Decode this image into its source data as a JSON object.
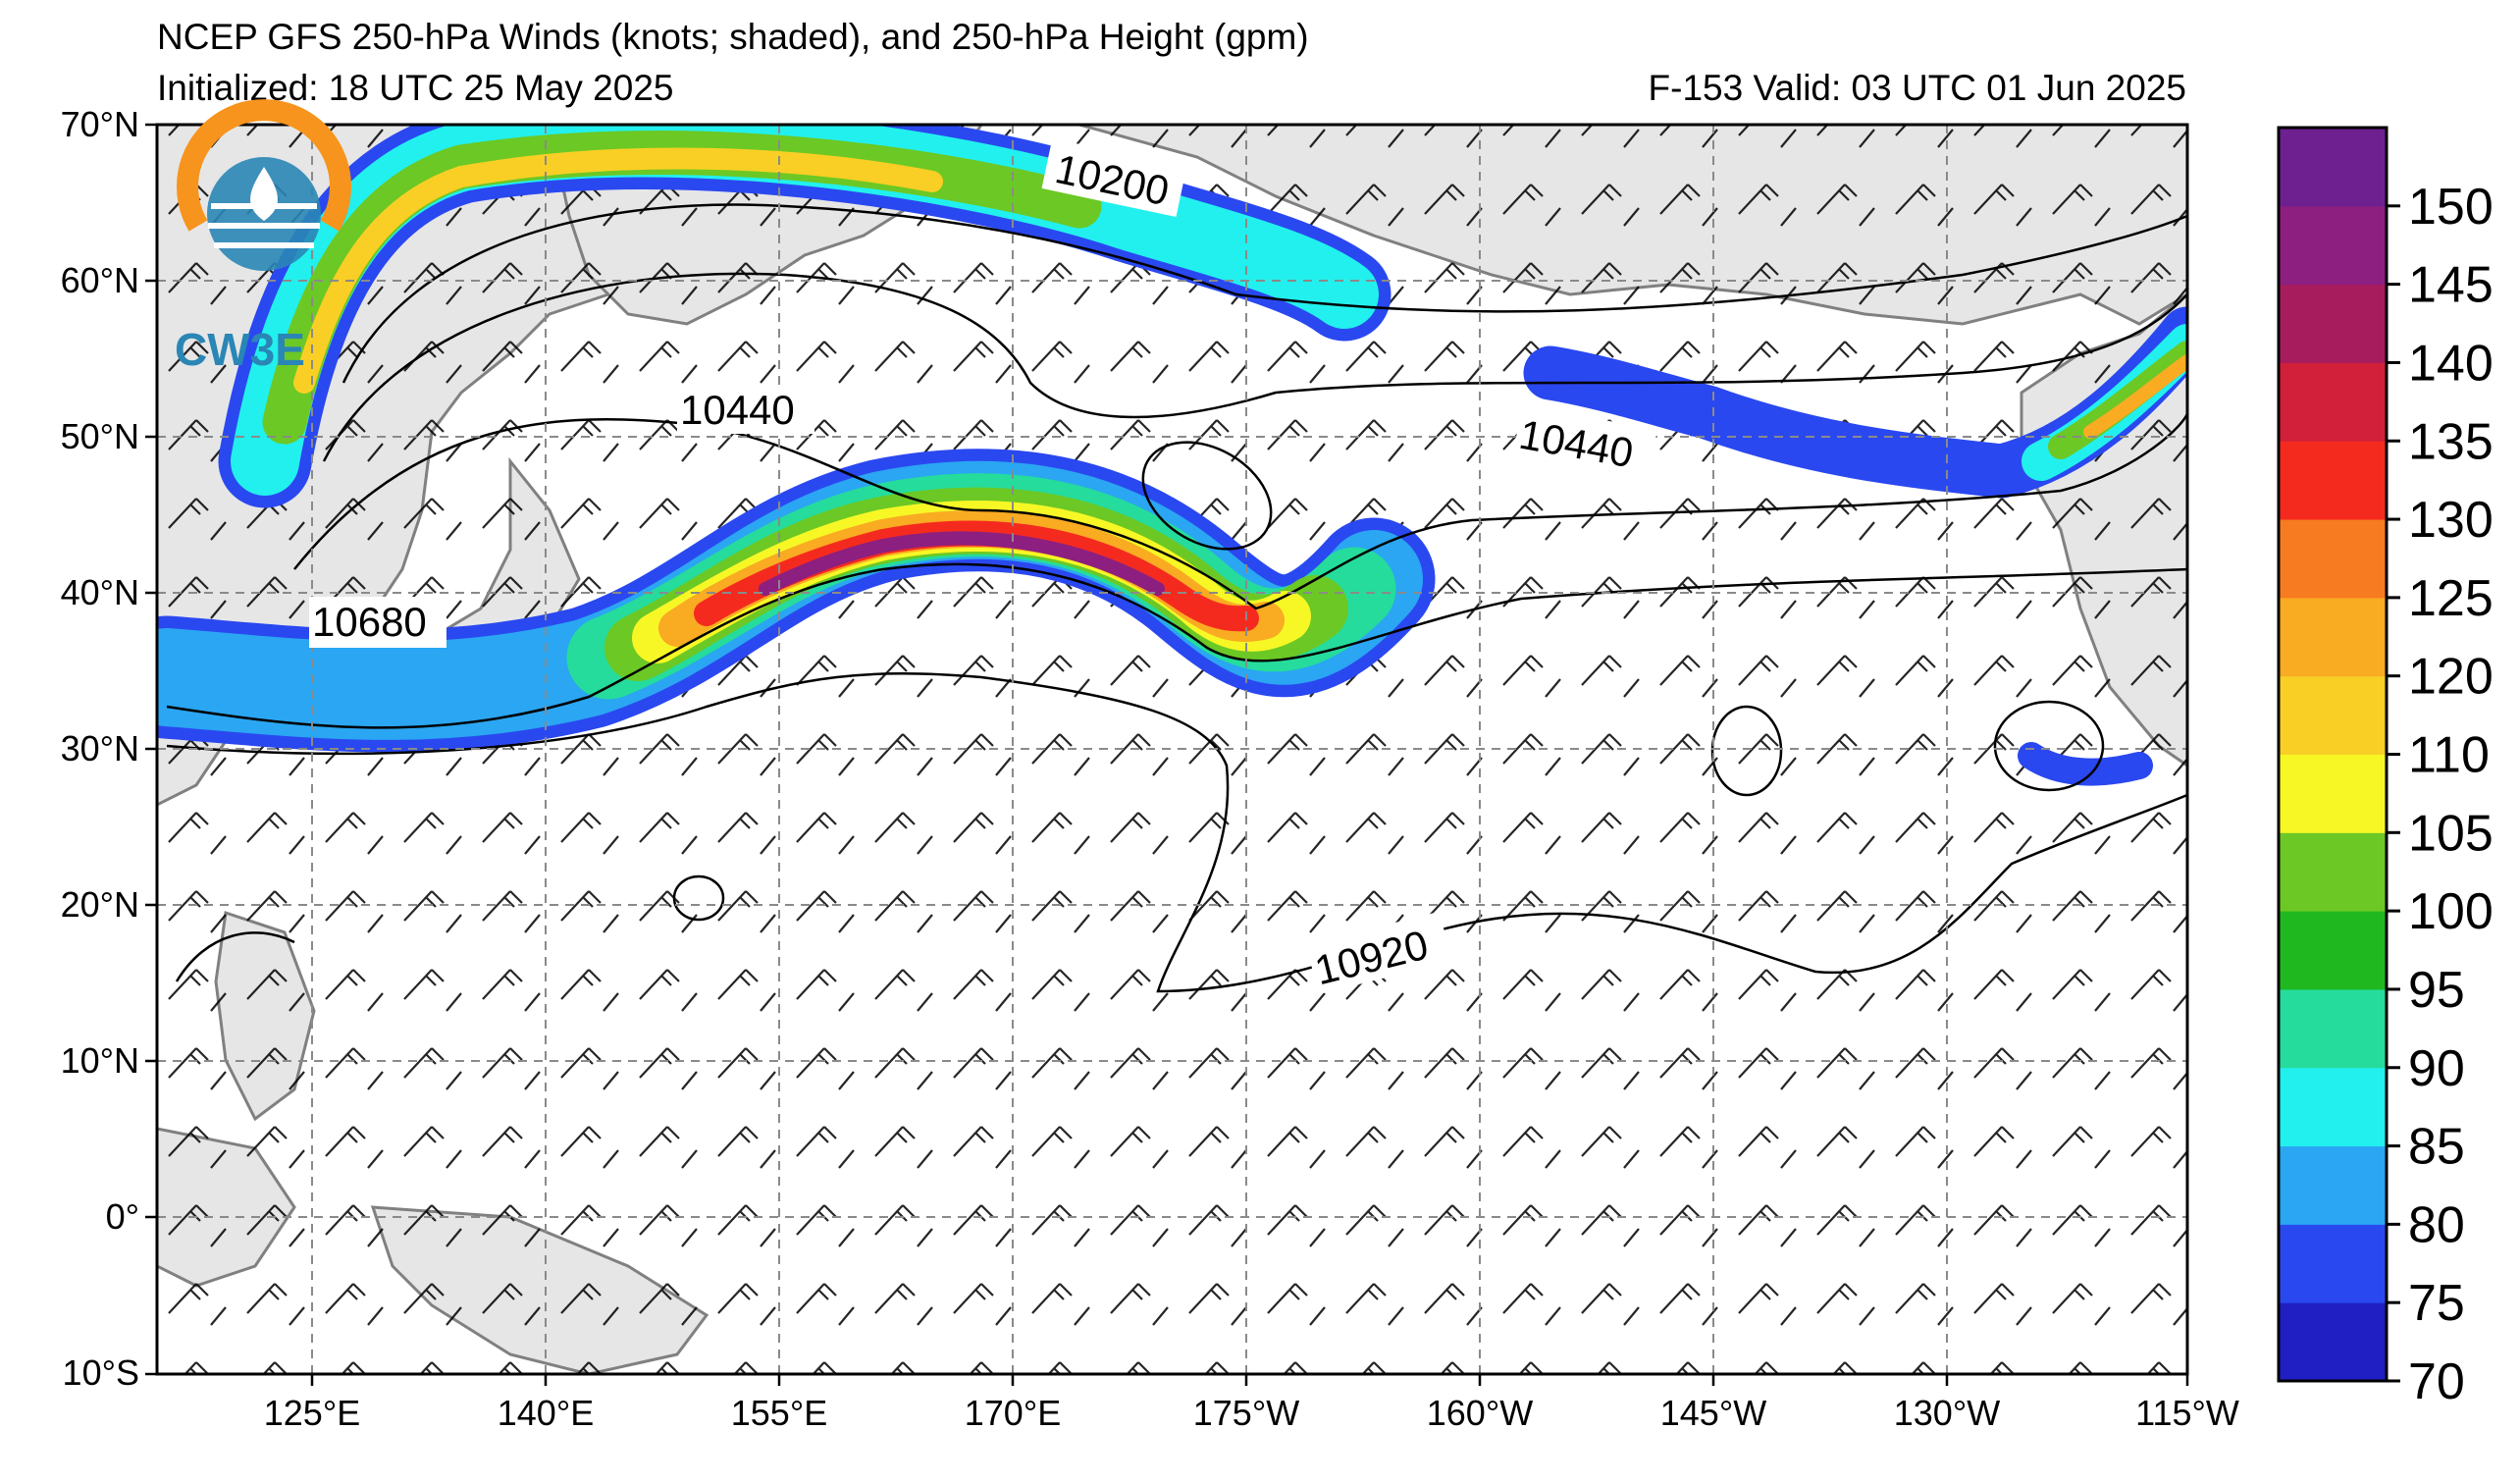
{
  "header": {
    "title": "NCEP GFS 250-hPa Winds (knots; shaded), and 250-hPa Height (gpm)",
    "initialized": "Initialized: 18 UTC 25 May 2025",
    "valid": "F-153  Valid: 03 UTC 01 Jun 2025"
  },
  "logo": {
    "text": "CW3E",
    "colors": [
      "#f7941d",
      "#2a86b5"
    ]
  },
  "map": {
    "lat_labels": [
      "70°N",
      "60°N",
      "50°N",
      "40°N",
      "30°N",
      "20°N",
      "10°N",
      "0°",
      "10°S"
    ],
    "lon_labels": [
      "125°E",
      "140°E",
      "155°E",
      "170°E",
      "175°W",
      "160°W",
      "145°W",
      "130°W",
      "115°W"
    ],
    "contour_labels": [
      "10200",
      "10440",
      "10440",
      "10680",
      "10920"
    ],
    "land_color": "#e6e6e6",
    "coast_color": "#808080"
  },
  "colorbar": {
    "ticks": [
      "150",
      "145",
      "140",
      "135",
      "130",
      "125",
      "120",
      "110",
      "105",
      "100",
      "95",
      "90",
      "85",
      "80",
      "75",
      "70"
    ],
    "colors_bottom_to_top": [
      "#1f1fc4",
      "#2a48f0",
      "#2aa6f2",
      "#22f0ee",
      "#25dc9c",
      "#1fb91f",
      "#6cc824",
      "#f7f726",
      "#f9cf25",
      "#f9ab22",
      "#f77b20",
      "#f52a1f",
      "#d21f3a",
      "#a71c5c",
      "#8c1f80",
      "#6e2090"
    ]
  }
}
